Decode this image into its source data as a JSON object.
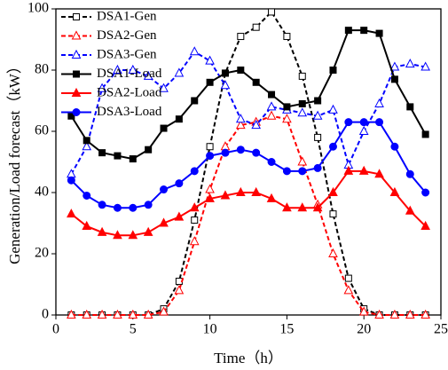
{
  "chart_data": {
    "type": "line",
    "xlabel": "Time（h）",
    "ylabel": "Generation/Load forecast（kW）",
    "x": [
      1,
      2,
      3,
      4,
      5,
      6,
      7,
      8,
      9,
      10,
      11,
      12,
      13,
      14,
      15,
      16,
      17,
      18,
      19,
      20,
      21,
      22,
      23,
      24
    ],
    "xlim": [
      0,
      25
    ],
    "xticks": [
      0,
      5,
      10,
      15,
      20,
      25
    ],
    "ylim": [
      0,
      100
    ],
    "yticks": [
      0,
      20,
      40,
      60,
      80,
      100
    ],
    "legend": "upper left",
    "series": [
      {
        "name": "DSA1-Gen",
        "color": "#000000",
        "dashed": true,
        "marker": "square",
        "filled": false,
        "values": [
          0,
          0,
          0,
          0,
          0,
          0,
          2,
          11,
          31,
          55,
          79,
          91,
          94,
          99,
          91,
          78,
          58,
          33,
          12,
          2,
          0,
          0,
          0,
          0
        ]
      },
      {
        "name": "DSA2-Gen",
        "color": "#ff0000",
        "dashed": true,
        "marker": "triangle",
        "filled": false,
        "values": [
          0,
          0,
          0,
          0,
          0,
          0,
          1,
          8,
          24,
          41,
          55,
          62,
          63,
          65,
          64,
          50,
          36,
          20,
          8,
          1,
          0,
          0,
          0,
          0
        ]
      },
      {
        "name": "DSA3-Gen",
        "color": "#0000ff",
        "dashed": true,
        "marker": "triangle",
        "filled": false,
        "values": [
          46,
          55,
          74,
          80,
          80,
          78,
          74,
          79,
          86,
          83,
          75,
          64,
          62,
          68,
          67,
          66,
          65,
          67,
          49,
          60,
          69,
          81,
          82,
          81
        ]
      },
      {
        "name": "DSA1-Load",
        "color": "#000000",
        "dashed": false,
        "marker": "square",
        "filled": true,
        "values": [
          65,
          57,
          53,
          52,
          51,
          54,
          61,
          64,
          70,
          76,
          79,
          80,
          76,
          72,
          68,
          69,
          70,
          80,
          93,
          93,
          92,
          77,
          68,
          59
        ]
      },
      {
        "name": "DSA2-Load",
        "color": "#ff0000",
        "dashed": false,
        "marker": "triangle",
        "filled": true,
        "values": [
          33,
          29,
          27,
          26,
          26,
          27,
          30,
          32,
          35,
          38,
          39,
          40,
          40,
          38,
          35,
          35,
          35,
          40,
          47,
          47,
          46,
          40,
          34,
          29
        ]
      },
      {
        "name": "DSA3-Load",
        "color": "#0000ff",
        "dashed": false,
        "marker": "circle",
        "filled": true,
        "values": [
          44,
          39,
          36,
          35,
          35,
          36,
          41,
          43,
          47,
          52,
          53,
          54,
          53,
          50,
          47,
          47,
          48,
          55,
          63,
          63,
          63,
          55,
          46,
          40
        ]
      }
    ]
  }
}
